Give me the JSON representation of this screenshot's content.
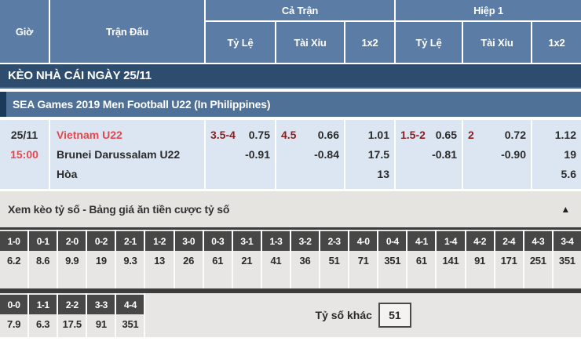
{
  "colors": {
    "header_blue": "#5b7ca4",
    "banner_navy": "#2d4c6e",
    "league_blue": "#4f7097",
    "league_left_border": "#1b3a5b",
    "match_row_bg": "#dbe6f2",
    "team_red": "#e4484e",
    "handicap_maroon": "#8a1e1e",
    "toggle_gray": "#e5e4e1",
    "score_box_dark": "#474747",
    "score_cell_gray": "#e7e6e4"
  },
  "header": {
    "time": "Giờ",
    "match": "Trận Đấu",
    "full_match": "Cả Trận",
    "first_half": "Hiệp 1",
    "handicap": "Tỷ Lệ",
    "over_under": "Tài Xỉu",
    "one_x_two": "1x2"
  },
  "banner": {
    "title": "KÈO NHÀ CÁI NGÀY 25/11"
  },
  "league": {
    "title": "SEA Games 2019 Men Football U22 (In Philippines)"
  },
  "match": {
    "date": "25/11",
    "time": "15:00",
    "home": "Vietnam U22",
    "away": "Brunei Darussalam U22",
    "draw": "Hòa",
    "ft_handicap": {
      "line": "3.5-4",
      "home": "0.75",
      "away": "-0.91"
    },
    "ft_ou": {
      "line": "4.5",
      "over": "0.66",
      "under": "-0.84"
    },
    "ft_1x2": {
      "home": "1.01",
      "away": "17.5",
      "draw": "13"
    },
    "h1_handicap": {
      "line": "1.5-2",
      "home": "0.65",
      "away": "-0.81"
    },
    "h1_ou": {
      "line": "2",
      "over": "0.72",
      "under": "-0.90"
    },
    "h1_1x2": {
      "home": "1.12",
      "away": "19",
      "draw": "5.6"
    }
  },
  "score_panel": {
    "toggle_label": "Xem kèo tỷ số - Bảng giá ăn tiền cược tỷ số",
    "collapse_icon": "▲",
    "row1": [
      {
        "score": "1-0",
        "odds": "6.2"
      },
      {
        "score": "0-1",
        "odds": "8.6"
      },
      {
        "score": "2-0",
        "odds": "9.9"
      },
      {
        "score": "0-2",
        "odds": "19"
      },
      {
        "score": "2-1",
        "odds": "9.3"
      },
      {
        "score": "1-2",
        "odds": "13"
      },
      {
        "score": "3-0",
        "odds": "26"
      },
      {
        "score": "0-3",
        "odds": "61"
      },
      {
        "score": "3-1",
        "odds": "21"
      },
      {
        "score": "1-3",
        "odds": "41"
      },
      {
        "score": "3-2",
        "odds": "36"
      },
      {
        "score": "2-3",
        "odds": "51"
      },
      {
        "score": "4-0",
        "odds": "71"
      },
      {
        "score": "0-4",
        "odds": "351"
      },
      {
        "score": "4-1",
        "odds": "61"
      },
      {
        "score": "1-4",
        "odds": "141"
      },
      {
        "score": "4-2",
        "odds": "91"
      },
      {
        "score": "2-4",
        "odds": "171"
      },
      {
        "score": "4-3",
        "odds": "251"
      },
      {
        "score": "3-4",
        "odds": "351"
      }
    ],
    "row2": [
      {
        "score": "0-0",
        "odds": "7.9"
      },
      {
        "score": "1-1",
        "odds": "6.3"
      },
      {
        "score": "2-2",
        "odds": "17.5"
      },
      {
        "score": "3-3",
        "odds": "91"
      },
      {
        "score": "4-4",
        "odds": "351"
      }
    ],
    "other_label": "Tỷ số khác",
    "other_value": "51"
  }
}
